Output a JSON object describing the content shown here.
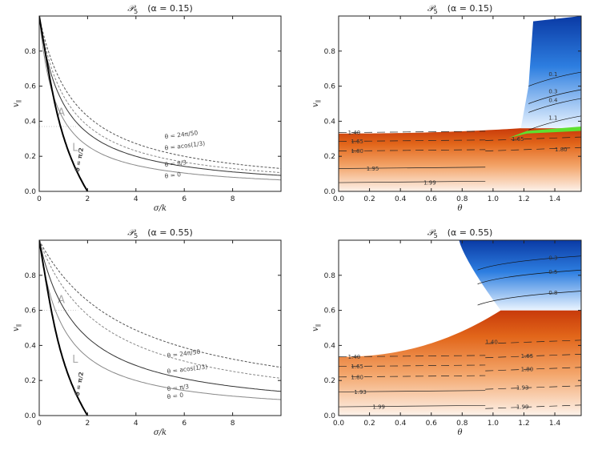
{
  "figure": {
    "panels": [
      {
        "id": "tl",
        "kind": "curves",
        "title_sym": "𝒫",
        "title_sub": "5",
        "title_param": "(α = 0.15)",
        "xlabel": "σ/k",
        "ylabel": "v",
        "ylabel_sub": "∥",
        "xlim": [
          0,
          10
        ],
        "ylim": [
          0,
          1
        ],
        "xticks": [
          {
            "v": 0,
            "t": "0"
          },
          {
            "v": 2,
            "t": "2"
          },
          {
            "v": 4,
            "t": "4"
          },
          {
            "v": 6,
            "t": "6"
          },
          {
            "v": 8,
            "t": "8"
          }
        ],
        "yticks": [
          {
            "v": 0,
            "t": "0.0"
          },
          {
            "v": 0.2,
            "t": "0.2"
          },
          {
            "v": 0.4,
            "t": "0.4"
          },
          {
            "v": 0.6,
            "t": "0.6"
          },
          {
            "v": 0.8,
            "t": "0.8"
          }
        ],
        "region_labels": [
          {
            "t": "A",
            "x": 0.9,
            "y": 0.45
          },
          {
            "t": "L",
            "x": 1.5,
            "y": 0.25
          }
        ],
        "dotted_level": 0.37,
        "curves": [
          {
            "label": "θ = 24π/50",
            "style": "dash",
            "weight": 1,
            "color": "#555",
            "a": 1.5,
            "p": 1,
            "lab_x": 5.2,
            "lab_y": 0.3
          },
          {
            "label": "θ = acos(1/3)",
            "style": "dash",
            "weight": 1,
            "color": "#888",
            "a": 1.2,
            "p": 1,
            "lab_x": 5.2,
            "lab_y": 0.235
          },
          {
            "label": "θ = π/3",
            "style": "solid",
            "weight": 1,
            "color": "#333",
            "a": 1.0,
            "p": 1,
            "lab_x": 5.2,
            "lab_y": 0.14
          },
          {
            "label": "θ = 0",
            "style": "solid",
            "weight": 1,
            "color": "#888",
            "a": 0.7,
            "p": 1,
            "lab_x": 5.2,
            "lab_y": 0.075
          }
        ],
        "steep_label": "θ = π/2",
        "steep_x0": 2.0,
        "steep_lab_x": 1.65,
        "steep_lab_y": 0.11
      },
      {
        "id": "tr",
        "kind": "map",
        "title_sym": "𝒫",
        "title_sub": "5",
        "title_param": "(α = 0.15)",
        "xlabel": "θ",
        "ylabel": "v",
        "ylabel_sub": "∥",
        "xlim": [
          0,
          1.5708
        ],
        "ylim": [
          0,
          1
        ],
        "xticks": [
          {
            "v": 0,
            "t": "0.0"
          },
          {
            "v": 0.2,
            "t": "0.2"
          },
          {
            "v": 0.4,
            "t": "0.4"
          },
          {
            "v": 0.6,
            "t": "0.6"
          },
          {
            "v": 0.8,
            "t": "0.8"
          },
          {
            "v": 1.0,
            "t": "1.0"
          },
          {
            "v": 1.2,
            "t": "1.2"
          },
          {
            "v": 1.4,
            "t": "1.4"
          }
        ],
        "yticks": [
          {
            "v": 0,
            "t": "0.0"
          },
          {
            "v": 0.2,
            "t": "0.2"
          },
          {
            "v": 0.4,
            "t": "0.4"
          },
          {
            "v": 0.6,
            "t": "0.6"
          },
          {
            "v": 0.8,
            "t": "0.8"
          }
        ],
        "orange_top_left": 0.33,
        "orange_top_right": 0.36,
        "cliff_x": 1.18,
        "has_green": true,
        "contours_orange": [
          {
            "label": "1.40",
            "y": 0.335,
            "lab_x": 0.06
          },
          {
            "label": "1.65",
            "y": 0.285,
            "lab_x": 0.08
          },
          {
            "label": "1.80",
            "y": 0.23,
            "lab_x": 0.08
          },
          {
            "label": "1.95",
            "y": 0.13,
            "lab_x": 0.18
          },
          {
            "label": "1.99",
            "y": 0.05,
            "lab_x": 0.55
          }
        ],
        "contours_right_orange": [
          {
            "label": "1.65",
            "y": 0.3,
            "lab_x": 1.12
          },
          {
            "label": "1.80",
            "y": 0.24,
            "lab_x": 1.4
          }
        ],
        "contours_blue": [
          {
            "label": "0.1",
            "y": 0.65
          },
          {
            "label": "0.3",
            "y": 0.55
          },
          {
            "label": "0.4",
            "y": 0.5
          },
          {
            "label": "1.1",
            "y": 0.4
          }
        ]
      },
      {
        "id": "bl",
        "kind": "curves",
        "title_sym": "𝒫",
        "title_sub": "5",
        "title_param": "(α = 0.55)",
        "xlabel": "σ/k",
        "ylabel": "v",
        "ylabel_sub": "∥",
        "xlim": [
          0,
          10
        ],
        "ylim": [
          0,
          1
        ],
        "xticks": [
          {
            "v": 0,
            "t": "0"
          },
          {
            "v": 2,
            "t": "2"
          },
          {
            "v": 4,
            "t": "4"
          },
          {
            "v": 6,
            "t": "6"
          },
          {
            "v": 8,
            "t": "8"
          }
        ],
        "yticks": [
          {
            "v": 0,
            "t": "0.0"
          },
          {
            "v": 0.2,
            "t": "0.2"
          },
          {
            "v": 0.4,
            "t": "0.4"
          },
          {
            "v": 0.6,
            "t": "0.6"
          },
          {
            "v": 0.8,
            "t": "0.8"
          }
        ],
        "region_labels": [
          {
            "t": "A",
            "x": 0.9,
            "y": 0.66
          },
          {
            "t": "L",
            "x": 1.5,
            "y": 0.32
          }
        ],
        "dotted_level": 0.6,
        "curves": [
          {
            "label": "θ = 24π/50",
            "style": "dash",
            "weight": 1,
            "color": "#555",
            "a": 3.8,
            "p": 1,
            "lab_x": 5.3,
            "lab_y": 0.33
          },
          {
            "label": "θ = acos(1/3)",
            "style": "dash",
            "weight": 1,
            "color": "#888",
            "a": 2.7,
            "p": 1,
            "lab_x": 5.3,
            "lab_y": 0.24
          },
          {
            "label": "θ = π/3",
            "style": "solid",
            "weight": 1,
            "color": "#333",
            "a": 1.6,
            "p": 1,
            "lab_x": 5.3,
            "lab_y": 0.14
          },
          {
            "label": "θ = 0",
            "style": "solid",
            "weight": 1,
            "color": "#888",
            "a": 1.0,
            "p": 1,
            "lab_x": 5.3,
            "lab_y": 0.095
          }
        ],
        "steep_label": "θ = π/2",
        "steep_x0": 2.0,
        "steep_lab_x": 1.65,
        "steep_lab_y": 0.11
      },
      {
        "id": "br",
        "kind": "map",
        "title_sym": "𝒫",
        "title_sub": "5",
        "title_param": "(α = 0.55)",
        "xlabel": "θ",
        "ylabel": "v",
        "ylabel_sub": "∥",
        "xlim": [
          0,
          1.5708
        ],
        "ylim": [
          0,
          1
        ],
        "xticks": [
          {
            "v": 0,
            "t": "0.0"
          },
          {
            "v": 0.2,
            "t": "0.2"
          },
          {
            "v": 0.4,
            "t": "0.4"
          },
          {
            "v": 0.6,
            "t": "0.6"
          },
          {
            "v": 0.8,
            "t": "0.8"
          },
          {
            "v": 1.0,
            "t": "1.0"
          },
          {
            "v": 1.2,
            "t": "1.2"
          },
          {
            "v": 1.4,
            "t": "1.4"
          }
        ],
        "yticks": [
          {
            "v": 0,
            "t": "0.0"
          },
          {
            "v": 0.2,
            "t": "0.2"
          },
          {
            "v": 0.4,
            "t": "0.4"
          },
          {
            "v": 0.6,
            "t": "0.6"
          },
          {
            "v": 0.8,
            "t": "0.8"
          }
        ],
        "orange_top_left": 0.335,
        "orange_top_right": 0.6,
        "cliff_x": 1.05,
        "has_green": false,
        "contours_orange": [
          {
            "label": "1.40",
            "y": 0.335,
            "lab_x": 0.06
          },
          {
            "label": "1.65",
            "y": 0.28,
            "lab_x": 0.08
          },
          {
            "label": "1.80",
            "y": 0.22,
            "lab_x": 0.08
          },
          {
            "label": "1.93",
            "y": 0.135,
            "lab_x": 0.1
          },
          {
            "label": "1.99",
            "y": 0.05,
            "lab_x": 0.22
          }
        ],
        "contours_right_orange": [
          {
            "label": "1.40",
            "y": 0.42,
            "lab_x": 0.95
          },
          {
            "label": "1.65",
            "y": 0.34,
            "lab_x": 1.18
          },
          {
            "label": "1.80",
            "y": 0.265,
            "lab_x": 1.18
          },
          {
            "label": "1.93",
            "y": 0.16,
            "lab_x": 1.15
          },
          {
            "label": "1.99",
            "y": 0.05,
            "lab_x": 1.15
          }
        ],
        "contours_blue": [
          {
            "label": "0.3",
            "y": 0.88
          },
          {
            "label": "0.5",
            "y": 0.8
          },
          {
            "label": "0.8",
            "y": 0.68
          }
        ]
      }
    ]
  },
  "chart_data": [
    {
      "type": "line",
      "title": "𝒫5 (α = 0.15)",
      "xlabel": "σ/k",
      "ylabel": "v∥",
      "xlim": [
        0,
        10
      ],
      "ylim": [
        0,
        1
      ],
      "series": [
        {
          "name": "θ = 24π/50",
          "x": [
            0,
            2,
            4,
            6,
            8,
            10
          ],
          "values": [
            1.0,
            0.43,
            0.27,
            0.2,
            0.16,
            0.13
          ]
        },
        {
          "name": "θ = acos(1/3)",
          "x": [
            0,
            2,
            4,
            6,
            8,
            10
          ],
          "values": [
            1.0,
            0.38,
            0.23,
            0.17,
            0.13,
            0.11
          ]
        },
        {
          "name": "θ = π/3",
          "x": [
            0,
            2,
            4,
            6,
            8,
            10
          ],
          "values": [
            1.0,
            0.33,
            0.2,
            0.14,
            0.11,
            0.09
          ]
        },
        {
          "name": "θ = 0",
          "x": [
            0,
            2,
            4,
            6,
            8,
            10
          ],
          "values": [
            1.0,
            0.26,
            0.15,
            0.1,
            0.08,
            0.07
          ]
        },
        {
          "name": "θ = π/2",
          "x": [
            0,
            1,
            1.5,
            2
          ],
          "values": [
            1.0,
            0.5,
            0.36,
            0.0
          ]
        }
      ]
    },
    {
      "type": "heatmap",
      "title": "𝒫5 (α = 0.15)",
      "xlabel": "θ",
      "ylabel": "v∥",
      "xlim": [
        0,
        1.57
      ],
      "ylim": [
        0,
        1
      ],
      "contour_levels": [
        "1.40",
        "1.65",
        "1.80",
        "1.95",
        "1.99",
        "0.1",
        "0.3",
        "0.4",
        "1.1"
      ]
    },
    {
      "type": "line",
      "title": "𝒫5 (α = 0.55)",
      "xlabel": "σ/k",
      "ylabel": "v∥",
      "xlim": [
        0,
        10
      ],
      "ylim": [
        0,
        1
      ],
      "series": [
        {
          "name": "θ = 24π/50",
          "x": [
            0,
            2,
            4,
            6,
            8,
            10
          ],
          "values": [
            1.0,
            0.66,
            0.49,
            0.39,
            0.32,
            0.27
          ]
        },
        {
          "name": "θ = acos(1/3)",
          "x": [
            0,
            2,
            4,
            6,
            8,
            10
          ],
          "values": [
            1.0,
            0.57,
            0.4,
            0.31,
            0.25,
            0.21
          ]
        },
        {
          "name": "θ = π/3",
          "x": [
            0,
            2,
            4,
            6,
            8,
            10
          ],
          "values": [
            1.0,
            0.44,
            0.29,
            0.21,
            0.17,
            0.14
          ]
        },
        {
          "name": "θ = 0",
          "x": [
            0,
            2,
            4,
            6,
            8,
            10
          ],
          "values": [
            1.0,
            0.33,
            0.2,
            0.14,
            0.11,
            0.09
          ]
        },
        {
          "name": "θ = π/2",
          "x": [
            0,
            1,
            1.5,
            2
          ],
          "values": [
            1.0,
            0.5,
            0.3,
            0.0
          ]
        }
      ]
    },
    {
      "type": "heatmap",
      "title": "𝒫5 (α = 0.55)",
      "xlabel": "θ",
      "ylabel": "v∥",
      "xlim": [
        0,
        1.57
      ],
      "ylim": [
        0,
        1
      ],
      "contour_levels": [
        "1.40",
        "1.65",
        "1.80",
        "1.93",
        "1.99",
        "0.3",
        "0.5",
        "0.8"
      ]
    }
  ]
}
